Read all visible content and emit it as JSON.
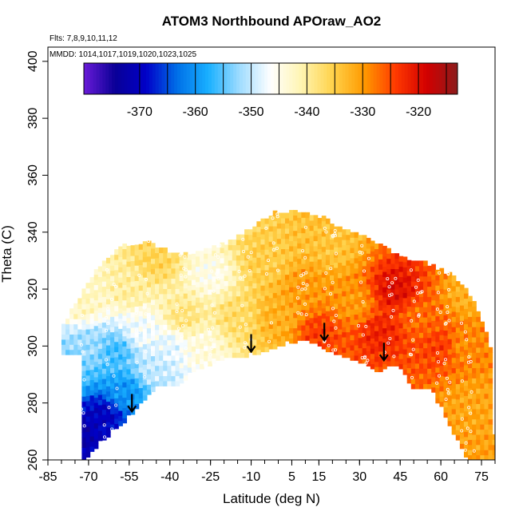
{
  "colors": {
    "palette": [
      "#6a1bd8",
      "#0a0096",
      "#0000c8",
      "#0070e8",
      "#19b0ff",
      "#9fdcff",
      "#ffffff",
      "#fff4b0",
      "#ffd24a",
      "#ff9a00",
      "#ff3a00",
      "#d30000",
      "#8b1c1c"
    ],
    "marker": "#ffffff",
    "arrow": "#000000",
    "background": "#ffffff"
  },
  "chart_data": {
    "type": "heatmap",
    "title": "ATOM3 Northbound APOraw_AO2",
    "notes": [
      "Flts: 7,8,9,10,11,12",
      "MMDD: 1014,1017,1019,1020,1023,1025"
    ],
    "xlabel": "Latitude (deg N)",
    "ylabel": "Theta (C)",
    "xlim": [
      -85,
      80
    ],
    "ylim": [
      260,
      405
    ],
    "x_ticks": [
      -85,
      -70,
      -55,
      -40,
      -25,
      -10,
      5,
      15,
      30,
      45,
      60,
      75
    ],
    "y_ticks": [
      260,
      280,
      300,
      320,
      340,
      360,
      380,
      400
    ],
    "colorbar": {
      "range": [
        -380,
        -313
      ],
      "ticks": [
        -370,
        -360,
        -350,
        -340,
        -330,
        -320
      ],
      "position": "top"
    },
    "lower_boundary": [
      {
        "lat": -72,
        "theta": 259
      },
      {
        "lat": -68,
        "theta": 264
      },
      {
        "lat": -60,
        "theta": 271
      },
      {
        "lat": -54,
        "theta": 276
      },
      {
        "lat": -50,
        "theta": 281
      },
      {
        "lat": -44,
        "theta": 287
      },
      {
        "lat": -38,
        "theta": 286
      },
      {
        "lat": -30,
        "theta": 292
      },
      {
        "lat": -20,
        "theta": 296
      },
      {
        "lat": -10,
        "theta": 297
      },
      {
        "lat": 0,
        "theta": 300
      },
      {
        "lat": 10,
        "theta": 303
      },
      {
        "lat": 20,
        "theta": 298
      },
      {
        "lat": 30,
        "theta": 295
      },
      {
        "lat": 37,
        "theta": 291
      },
      {
        "lat": 40,
        "theta": 293
      },
      {
        "lat": 45,
        "theta": 293
      },
      {
        "lat": 50,
        "theta": 285
      },
      {
        "lat": 56,
        "theta": 285
      },
      {
        "lat": 62,
        "theta": 275
      },
      {
        "lat": 70,
        "theta": 260
      },
      {
        "lat": 78,
        "theta": 260
      }
    ],
    "upper_boundary": [
      {
        "lat": -79,
        "theta": 297
      },
      {
        "lat": -79,
        "theta": 307
      },
      {
        "lat": -77,
        "theta": 312
      },
      {
        "lat": -72,
        "theta": 319
      },
      {
        "lat": -66,
        "theta": 328
      },
      {
        "lat": -58,
        "theta": 335
      },
      {
        "lat": -48,
        "theta": 337
      },
      {
        "lat": -38,
        "theta": 332
      },
      {
        "lat": -30,
        "theta": 333
      },
      {
        "lat": -20,
        "theta": 336
      },
      {
        "lat": -10,
        "theta": 342
      },
      {
        "lat": -2,
        "theta": 347
      },
      {
        "lat": 6,
        "theta": 348
      },
      {
        "lat": 15,
        "theta": 346
      },
      {
        "lat": 25,
        "theta": 341
      },
      {
        "lat": 35,
        "theta": 337
      },
      {
        "lat": 45,
        "theta": 331
      },
      {
        "lat": 55,
        "theta": 329
      },
      {
        "lat": 65,
        "theta": 325
      },
      {
        "lat": 72,
        "theta": 316
      },
      {
        "lat": 76,
        "theta": 307
      },
      {
        "lat": 79,
        "theta": 297
      },
      {
        "lat": 80,
        "theta": 260
      }
    ],
    "field_anchors": [
      {
        "lat": -75,
        "theta": 270,
        "value": -373
      },
      {
        "lat": -65,
        "theta": 276,
        "value": -370
      },
      {
        "lat": -57,
        "theta": 284,
        "value": -360
      },
      {
        "lat": -78,
        "theta": 290,
        "value": -355
      },
      {
        "lat": -70,
        "theta": 300,
        "value": -352
      },
      {
        "lat": -60,
        "theta": 298,
        "value": -356
      },
      {
        "lat": -45,
        "theta": 292,
        "value": -350
      },
      {
        "lat": -72,
        "theta": 315,
        "value": -342
      },
      {
        "lat": -55,
        "theta": 320,
        "value": -340
      },
      {
        "lat": -50,
        "theta": 305,
        "value": -347
      },
      {
        "lat": -40,
        "theta": 300,
        "value": -348
      },
      {
        "lat": -45,
        "theta": 330,
        "value": -336
      },
      {
        "lat": -35,
        "theta": 310,
        "value": -338
      },
      {
        "lat": -28,
        "theta": 300,
        "value": -344
      },
      {
        "lat": -25,
        "theta": 325,
        "value": -345
      },
      {
        "lat": -15,
        "theta": 310,
        "value": -337
      },
      {
        "lat": -5,
        "theta": 330,
        "value": -335
      },
      {
        "lat": 0,
        "theta": 310,
        "value": -332
      },
      {
        "lat": 10,
        "theta": 320,
        "value": -330
      },
      {
        "lat": 15,
        "theta": 305,
        "value": -324
      },
      {
        "lat": 20,
        "theta": 335,
        "value": -334
      },
      {
        "lat": 28,
        "theta": 315,
        "value": -330
      },
      {
        "lat": 38,
        "theta": 305,
        "value": -322
      },
      {
        "lat": 43,
        "theta": 320,
        "value": -320
      },
      {
        "lat": 52,
        "theta": 310,
        "value": -327
      },
      {
        "lat": 60,
        "theta": 300,
        "value": -324
      },
      {
        "lat": 68,
        "theta": 300,
        "value": -329
      },
      {
        "lat": 72,
        "theta": 280,
        "value": -331
      },
      {
        "lat": 70,
        "theta": 318,
        "value": -332
      }
    ],
    "arrows": [
      {
        "lat": -54,
        "theta": 277
      },
      {
        "lat": -10,
        "theta": 298
      },
      {
        "lat": 17,
        "theta": 302
      },
      {
        "lat": 39,
        "theta": 295
      }
    ],
    "grid": false,
    "legend": "top"
  }
}
